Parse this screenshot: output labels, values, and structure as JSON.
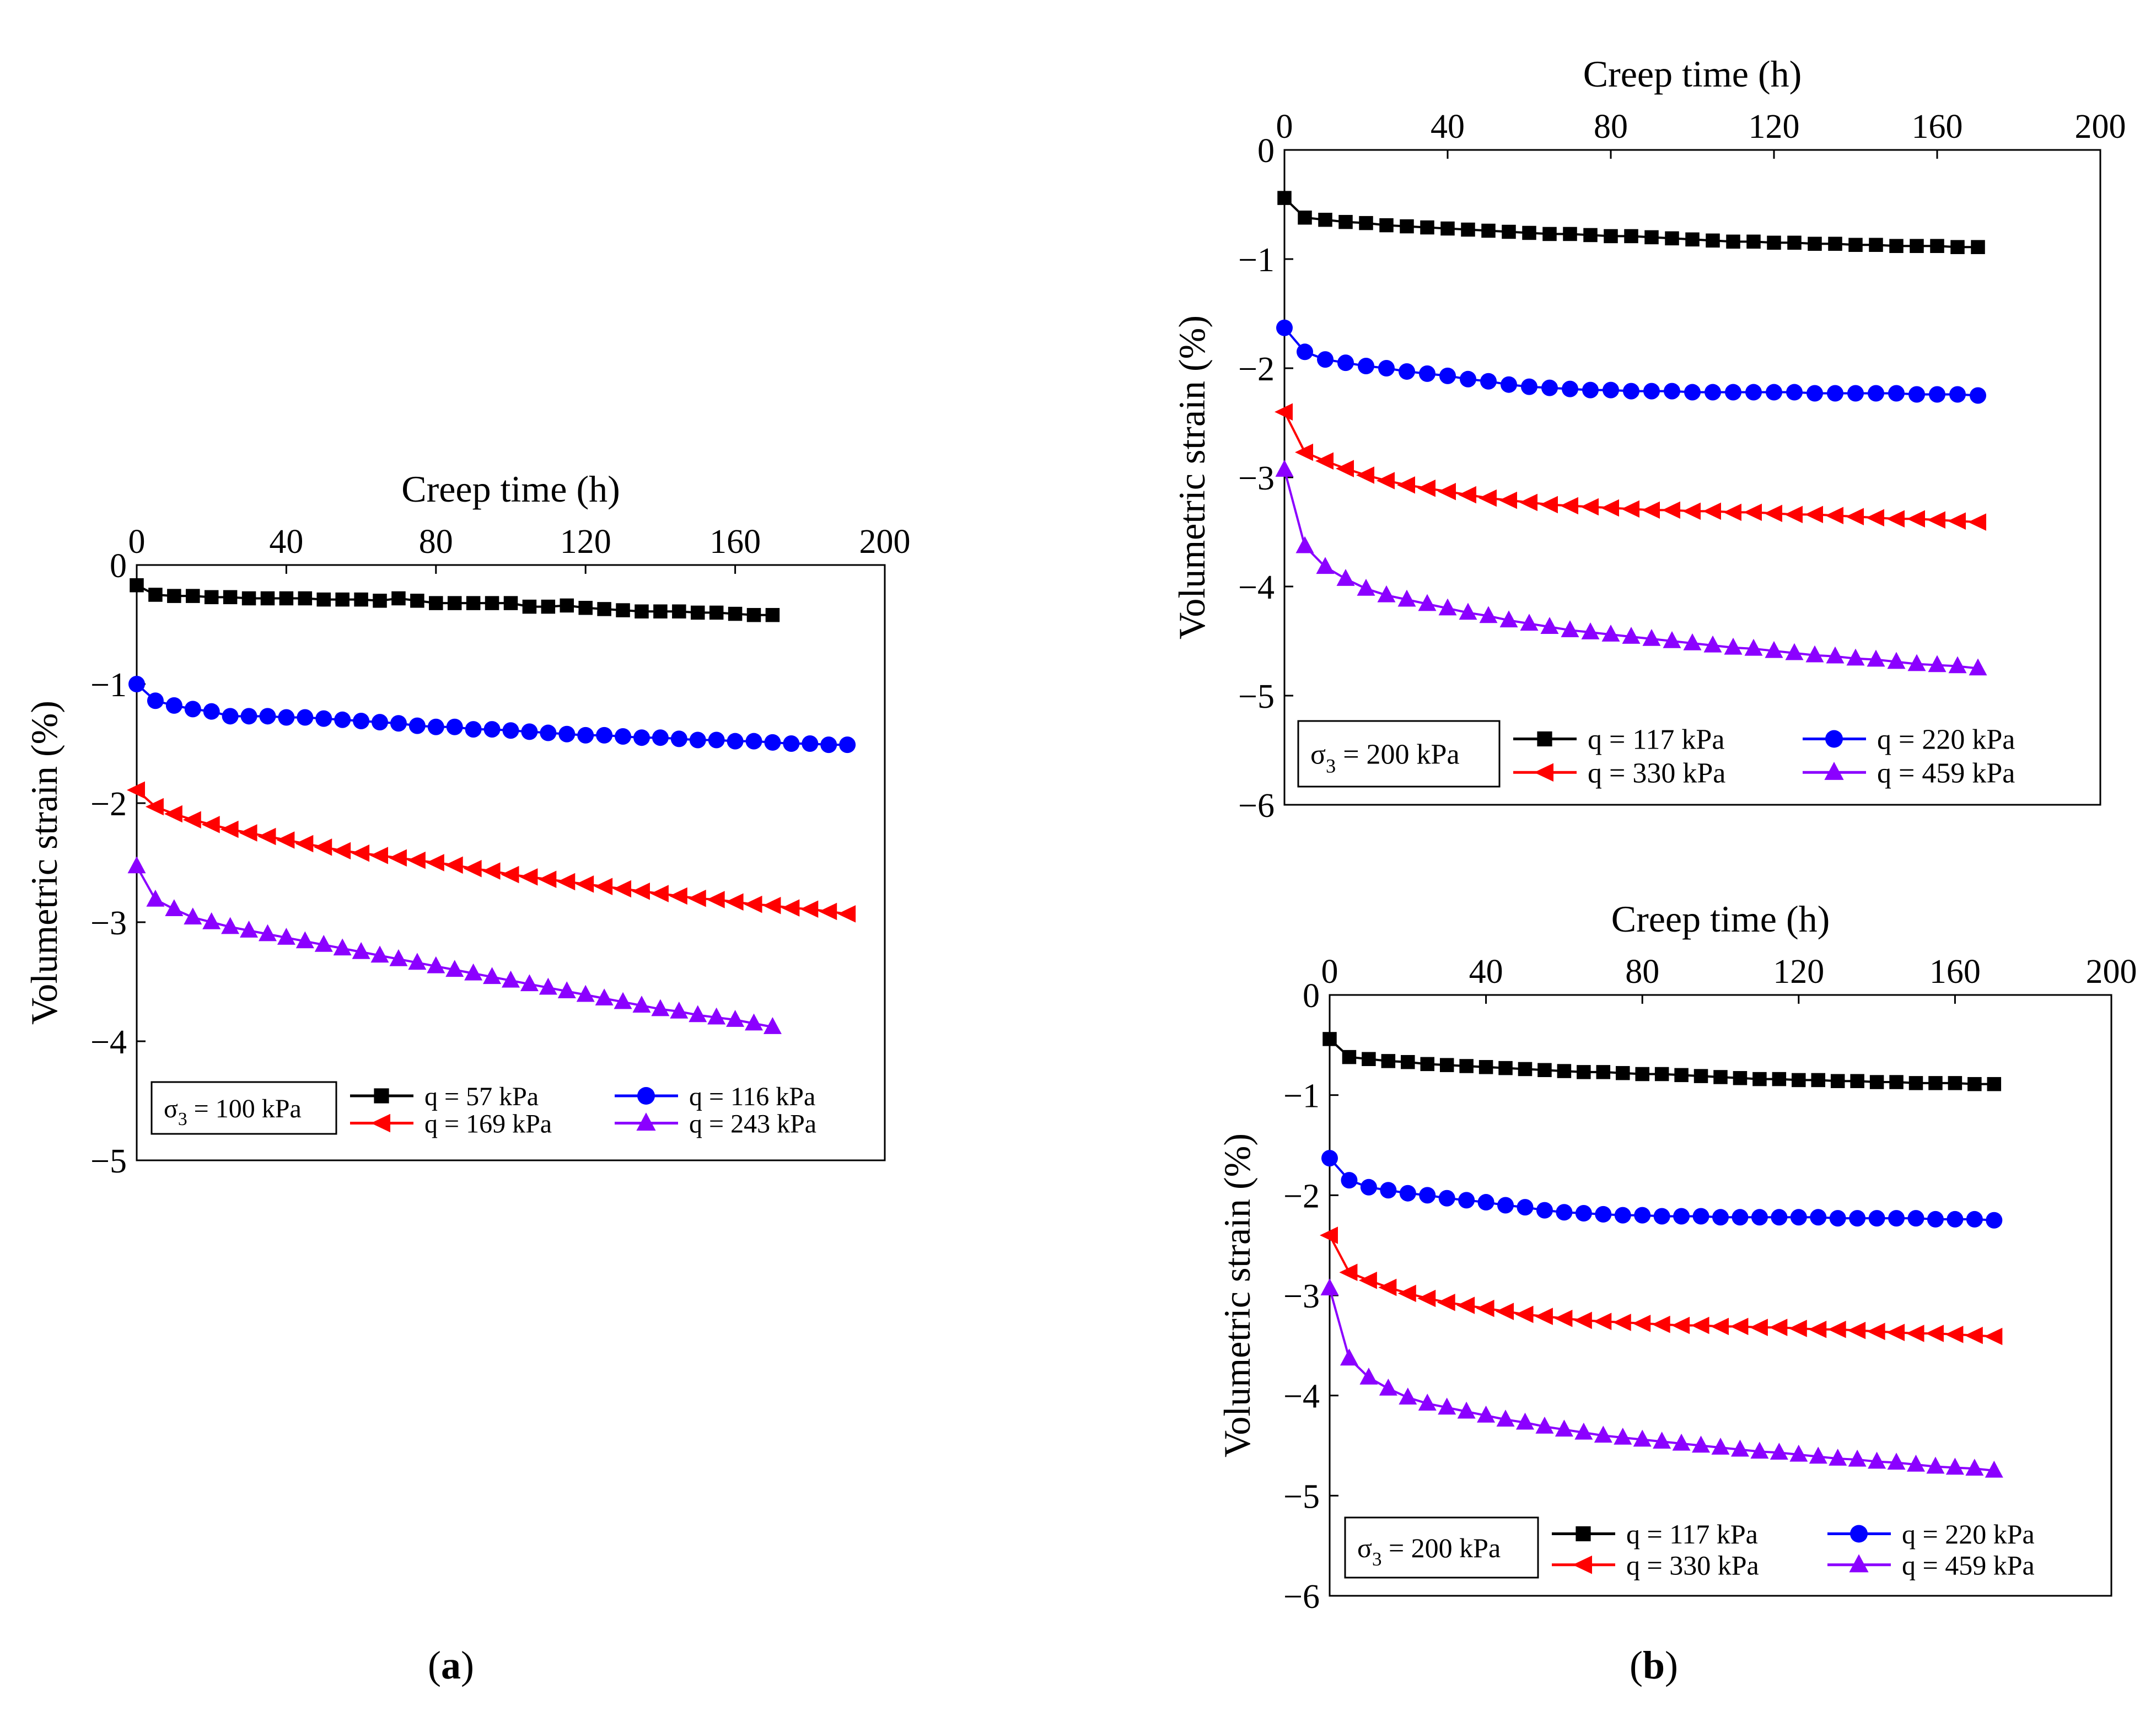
{
  "figure": {
    "panel_labels": [
      "(a)",
      "(b)"
    ]
  },
  "chart_data": [
    {
      "id": "a",
      "type": "line",
      "panel_label": "(a)",
      "xlabel": "Creep time (h)",
      "ylabel": "Volumetric strain (%)",
      "xaxis_position": "top",
      "xlim": [
        0,
        200
      ],
      "ylim": [
        -5,
        0
      ],
      "xticks": [
        0,
        40,
        80,
        120,
        160,
        200
      ],
      "yticks": [
        0,
        -1,
        -2,
        -3,
        -4,
        -5
      ],
      "annotation": "σ3 = 100 kPa",
      "legend_placement": "bottom",
      "grid": false,
      "series": [
        {
          "name": "q = 57 kPa",
          "color": "#000000",
          "marker": "square",
          "x": [
            0,
            5,
            10,
            15,
            20,
            25,
            30,
            35,
            40,
            45,
            50,
            55,
            60,
            65,
            70,
            75,
            80,
            85,
            90,
            95,
            100,
            105,
            110,
            115,
            120,
            125,
            130,
            135,
            140,
            145,
            150,
            155,
            160,
            165,
            170
          ],
          "y": [
            -0.17,
            -0.25,
            -0.26,
            -0.26,
            -0.27,
            -0.27,
            -0.28,
            -0.28,
            -0.28,
            -0.28,
            -0.29,
            -0.29,
            -0.29,
            -0.3,
            -0.28,
            -0.3,
            -0.32,
            -0.32,
            -0.32,
            -0.32,
            -0.32,
            -0.35,
            -0.35,
            -0.34,
            -0.36,
            -0.37,
            -0.38,
            -0.39,
            -0.39,
            -0.39,
            -0.4,
            -0.4,
            -0.41,
            -0.42,
            -0.42
          ]
        },
        {
          "name": "q = 116 kPa",
          "color": "#0000ff",
          "marker": "circle",
          "x": [
            0,
            5,
            10,
            15,
            20,
            25,
            30,
            35,
            40,
            45,
            50,
            55,
            60,
            65,
            70,
            75,
            80,
            85,
            90,
            95,
            100,
            105,
            110,
            115,
            120,
            125,
            130,
            135,
            140,
            145,
            150,
            155,
            160,
            165,
            170,
            175,
            180,
            185,
            190
          ],
          "y": [
            -1.0,
            -1.14,
            -1.18,
            -1.21,
            -1.23,
            -1.27,
            -1.27,
            -1.27,
            -1.28,
            -1.28,
            -1.29,
            -1.3,
            -1.31,
            -1.32,
            -1.33,
            -1.35,
            -1.36,
            -1.36,
            -1.38,
            -1.38,
            -1.39,
            -1.4,
            -1.41,
            -1.42,
            -1.43,
            -1.43,
            -1.44,
            -1.45,
            -1.45,
            -1.46,
            -1.47,
            -1.47,
            -1.48,
            -1.48,
            -1.49,
            -1.5,
            -1.5,
            -1.51,
            -1.51
          ]
        },
        {
          "name": "q = 169 kPa",
          "color": "#ff0000",
          "marker": "triangle-left",
          "x": [
            0,
            5,
            10,
            15,
            20,
            25,
            30,
            35,
            40,
            45,
            50,
            55,
            60,
            65,
            70,
            75,
            80,
            85,
            90,
            95,
            100,
            105,
            110,
            115,
            120,
            125,
            130,
            135,
            140,
            145,
            150,
            155,
            160,
            165,
            170,
            175,
            180,
            185,
            190
          ],
          "y": [
            -1.89,
            -2.03,
            -2.09,
            -2.14,
            -2.18,
            -2.22,
            -2.25,
            -2.28,
            -2.31,
            -2.34,
            -2.37,
            -2.4,
            -2.42,
            -2.44,
            -2.46,
            -2.48,
            -2.5,
            -2.52,
            -2.55,
            -2.57,
            -2.6,
            -2.62,
            -2.64,
            -2.66,
            -2.68,
            -2.7,
            -2.72,
            -2.74,
            -2.76,
            -2.78,
            -2.8,
            -2.81,
            -2.83,
            -2.85,
            -2.86,
            -2.88,
            -2.89,
            -2.91,
            -2.93
          ]
        },
        {
          "name": "q = 243 kPa",
          "color": "#8b00ff",
          "marker": "triangle-up",
          "x": [
            0,
            5,
            10,
            15,
            20,
            25,
            30,
            35,
            40,
            45,
            50,
            55,
            60,
            65,
            70,
            75,
            80,
            85,
            90,
            95,
            100,
            105,
            110,
            115,
            120,
            125,
            130,
            135,
            140,
            145,
            150,
            155,
            160,
            165,
            170
          ],
          "y": [
            -2.53,
            -2.81,
            -2.89,
            -2.96,
            -3.0,
            -3.04,
            -3.07,
            -3.1,
            -3.13,
            -3.16,
            -3.19,
            -3.22,
            -3.25,
            -3.28,
            -3.31,
            -3.34,
            -3.37,
            -3.4,
            -3.43,
            -3.46,
            -3.49,
            -3.52,
            -3.55,
            -3.58,
            -3.61,
            -3.64,
            -3.67,
            -3.7,
            -3.73,
            -3.75,
            -3.78,
            -3.8,
            -3.82,
            -3.85,
            -3.88
          ]
        }
      ]
    },
    {
      "id": "b1",
      "type": "line",
      "panel_label": "",
      "xlabel": "Creep time (h)",
      "ylabel": "Volumetric strain (%)",
      "xaxis_position": "top",
      "xlim": [
        0,
        200
      ],
      "ylim": [
        -6,
        0
      ],
      "xticks": [
        0,
        40,
        80,
        120,
        160,
        200
      ],
      "yticks": [
        0,
        -1,
        -2,
        -3,
        -4,
        -5,
        -6
      ],
      "annotation": "σ3 = 200 kPa",
      "legend_placement": "bottom",
      "grid": false,
      "series": [
        {
          "name": "q = 117 kPa",
          "color": "#000000",
          "marker": "square",
          "x": [
            0,
            5,
            10,
            15,
            20,
            25,
            30,
            35,
            40,
            45,
            50,
            55,
            60,
            65,
            70,
            75,
            80,
            85,
            90,
            95,
            100,
            105,
            110,
            115,
            120,
            125,
            130,
            135,
            140,
            145,
            150,
            155,
            160,
            165,
            170
          ],
          "y": [
            -0.44,
            -0.62,
            -0.64,
            -0.66,
            -0.67,
            -0.69,
            -0.7,
            -0.71,
            -0.72,
            -0.73,
            -0.74,
            -0.75,
            -0.76,
            -0.77,
            -0.77,
            -0.78,
            -0.79,
            -0.79,
            -0.8,
            -0.81,
            -0.82,
            -0.83,
            -0.84,
            -0.84,
            -0.85,
            -0.85,
            -0.86,
            -0.86,
            -0.87,
            -0.87,
            -0.88,
            -0.88,
            -0.88,
            -0.89,
            -0.89
          ]
        },
        {
          "name": "q = 220 kPa",
          "color": "#0000ff",
          "marker": "circle",
          "x": [
            0,
            5,
            10,
            15,
            20,
            25,
            30,
            35,
            40,
            45,
            50,
            55,
            60,
            65,
            70,
            75,
            80,
            85,
            90,
            95,
            100,
            105,
            110,
            115,
            120,
            125,
            130,
            135,
            140,
            145,
            150,
            155,
            160,
            165,
            170
          ],
          "y": [
            -1.63,
            -1.85,
            -1.92,
            -1.95,
            -1.98,
            -2.0,
            -2.03,
            -2.05,
            -2.07,
            -2.1,
            -2.12,
            -2.15,
            -2.17,
            -2.18,
            -2.19,
            -2.2,
            -2.2,
            -2.21,
            -2.21,
            -2.21,
            -2.22,
            -2.22,
            -2.22,
            -2.22,
            -2.22,
            -2.22,
            -2.23,
            -2.23,
            -2.23,
            -2.23,
            -2.23,
            -2.24,
            -2.24,
            -2.24,
            -2.25
          ]
        },
        {
          "name": "q = 330 kPa",
          "color": "#ff0000",
          "marker": "triangle-left",
          "x": [
            0,
            5,
            10,
            15,
            20,
            25,
            30,
            35,
            40,
            45,
            50,
            55,
            60,
            65,
            70,
            75,
            80,
            85,
            90,
            95,
            100,
            105,
            110,
            115,
            120,
            125,
            130,
            135,
            140,
            145,
            150,
            155,
            160,
            165,
            170
          ],
          "y": [
            -2.4,
            -2.77,
            -2.85,
            -2.92,
            -2.98,
            -3.03,
            -3.07,
            -3.1,
            -3.13,
            -3.16,
            -3.19,
            -3.21,
            -3.23,
            -3.25,
            -3.26,
            -3.27,
            -3.28,
            -3.29,
            -3.3,
            -3.3,
            -3.31,
            -3.31,
            -3.32,
            -3.32,
            -3.33,
            -3.34,
            -3.34,
            -3.35,
            -3.36,
            -3.37,
            -3.38,
            -3.38,
            -3.39,
            -3.4,
            -3.41
          ]
        },
        {
          "name": "q = 459 kPa",
          "color": "#8b00ff",
          "marker": "triangle-up",
          "x": [
            0,
            5,
            10,
            15,
            20,
            25,
            30,
            35,
            40,
            45,
            50,
            55,
            60,
            65,
            70,
            75,
            80,
            85,
            90,
            95,
            100,
            105,
            110,
            115,
            120,
            125,
            130,
            135,
            140,
            145,
            150,
            155,
            160,
            165,
            170
          ],
          "y": [
            -2.93,
            -3.63,
            -3.82,
            -3.93,
            -4.02,
            -4.08,
            -4.12,
            -4.16,
            -4.2,
            -4.24,
            -4.27,
            -4.31,
            -4.34,
            -4.37,
            -4.4,
            -4.42,
            -4.44,
            -4.46,
            -4.48,
            -4.5,
            -4.52,
            -4.54,
            -4.56,
            -4.57,
            -4.59,
            -4.61,
            -4.63,
            -4.64,
            -4.66,
            -4.67,
            -4.69,
            -4.71,
            -4.72,
            -4.73,
            -4.75
          ]
        }
      ]
    },
    {
      "id": "b2",
      "type": "line",
      "panel_label": "",
      "xlabel": "Creep time (h)",
      "ylabel": "Volumetric strain (%)",
      "xaxis_position": "top",
      "xlim": [
        0,
        200
      ],
      "ylim": [
        -6,
        0
      ],
      "xticks": [
        0,
        40,
        80,
        120,
        160,
        200
      ],
      "yticks": [
        0,
        -1,
        -2,
        -3,
        -4,
        -5,
        -6
      ],
      "annotation": "σ3 = 200 kPa",
      "legend_placement": "bottom",
      "grid": false,
      "series": [
        {
          "name": "q = 117 kPa",
          "color": "#000000",
          "marker": "square",
          "x": [
            0,
            5,
            10,
            15,
            20,
            25,
            30,
            35,
            40,
            45,
            50,
            55,
            60,
            65,
            70,
            75,
            80,
            85,
            90,
            95,
            100,
            105,
            110,
            115,
            120,
            125,
            130,
            135,
            140,
            145,
            150,
            155,
            160,
            165,
            170
          ],
          "y": [
            -0.44,
            -0.62,
            -0.64,
            -0.66,
            -0.67,
            -0.69,
            -0.7,
            -0.71,
            -0.72,
            -0.73,
            -0.74,
            -0.75,
            -0.76,
            -0.77,
            -0.77,
            -0.78,
            -0.79,
            -0.79,
            -0.8,
            -0.81,
            -0.82,
            -0.83,
            -0.84,
            -0.84,
            -0.85,
            -0.85,
            -0.86,
            -0.86,
            -0.87,
            -0.87,
            -0.88,
            -0.88,
            -0.88,
            -0.89,
            -0.89
          ]
        },
        {
          "name": "q = 220 kPa",
          "color": "#0000ff",
          "marker": "circle",
          "x": [
            0,
            5,
            10,
            15,
            20,
            25,
            30,
            35,
            40,
            45,
            50,
            55,
            60,
            65,
            70,
            75,
            80,
            85,
            90,
            95,
            100,
            105,
            110,
            115,
            120,
            125,
            130,
            135,
            140,
            145,
            150,
            155,
            160,
            165,
            170
          ],
          "y": [
            -1.63,
            -1.85,
            -1.92,
            -1.95,
            -1.98,
            -2.0,
            -2.03,
            -2.05,
            -2.07,
            -2.1,
            -2.12,
            -2.15,
            -2.17,
            -2.18,
            -2.19,
            -2.2,
            -2.2,
            -2.21,
            -2.21,
            -2.21,
            -2.22,
            -2.22,
            -2.22,
            -2.22,
            -2.22,
            -2.22,
            -2.23,
            -2.23,
            -2.23,
            -2.23,
            -2.23,
            -2.24,
            -2.24,
            -2.24,
            -2.25
          ]
        },
        {
          "name": "q = 330 kPa",
          "color": "#ff0000",
          "marker": "triangle-left",
          "x": [
            0,
            5,
            10,
            15,
            20,
            25,
            30,
            35,
            40,
            45,
            50,
            55,
            60,
            65,
            70,
            75,
            80,
            85,
            90,
            95,
            100,
            105,
            110,
            115,
            120,
            125,
            130,
            135,
            140,
            145,
            150,
            155,
            160,
            165,
            170
          ],
          "y": [
            -2.4,
            -2.77,
            -2.85,
            -2.92,
            -2.98,
            -3.03,
            -3.07,
            -3.1,
            -3.13,
            -3.16,
            -3.19,
            -3.21,
            -3.23,
            -3.25,
            -3.26,
            -3.27,
            -3.28,
            -3.29,
            -3.3,
            -3.3,
            -3.31,
            -3.31,
            -3.32,
            -3.32,
            -3.33,
            -3.34,
            -3.34,
            -3.35,
            -3.36,
            -3.37,
            -3.38,
            -3.38,
            -3.39,
            -3.4,
            -3.41
          ]
        },
        {
          "name": "q = 459 kPa",
          "color": "#8b00ff",
          "marker": "triangle-up",
          "x": [
            0,
            5,
            10,
            15,
            20,
            25,
            30,
            35,
            40,
            45,
            50,
            55,
            60,
            65,
            70,
            75,
            80,
            85,
            90,
            95,
            100,
            105,
            110,
            115,
            120,
            125,
            130,
            135,
            140,
            145,
            150,
            155,
            160,
            165,
            170
          ],
          "y": [
            -2.93,
            -3.63,
            -3.82,
            -3.93,
            -4.02,
            -4.08,
            -4.12,
            -4.16,
            -4.2,
            -4.24,
            -4.27,
            -4.31,
            -4.34,
            -4.37,
            -4.4,
            -4.42,
            -4.44,
            -4.46,
            -4.48,
            -4.5,
            -4.52,
            -4.54,
            -4.56,
            -4.57,
            -4.59,
            -4.61,
            -4.63,
            -4.64,
            -4.66,
            -4.67,
            -4.69,
            -4.71,
            -4.72,
            -4.73,
            -4.75
          ]
        }
      ]
    }
  ]
}
